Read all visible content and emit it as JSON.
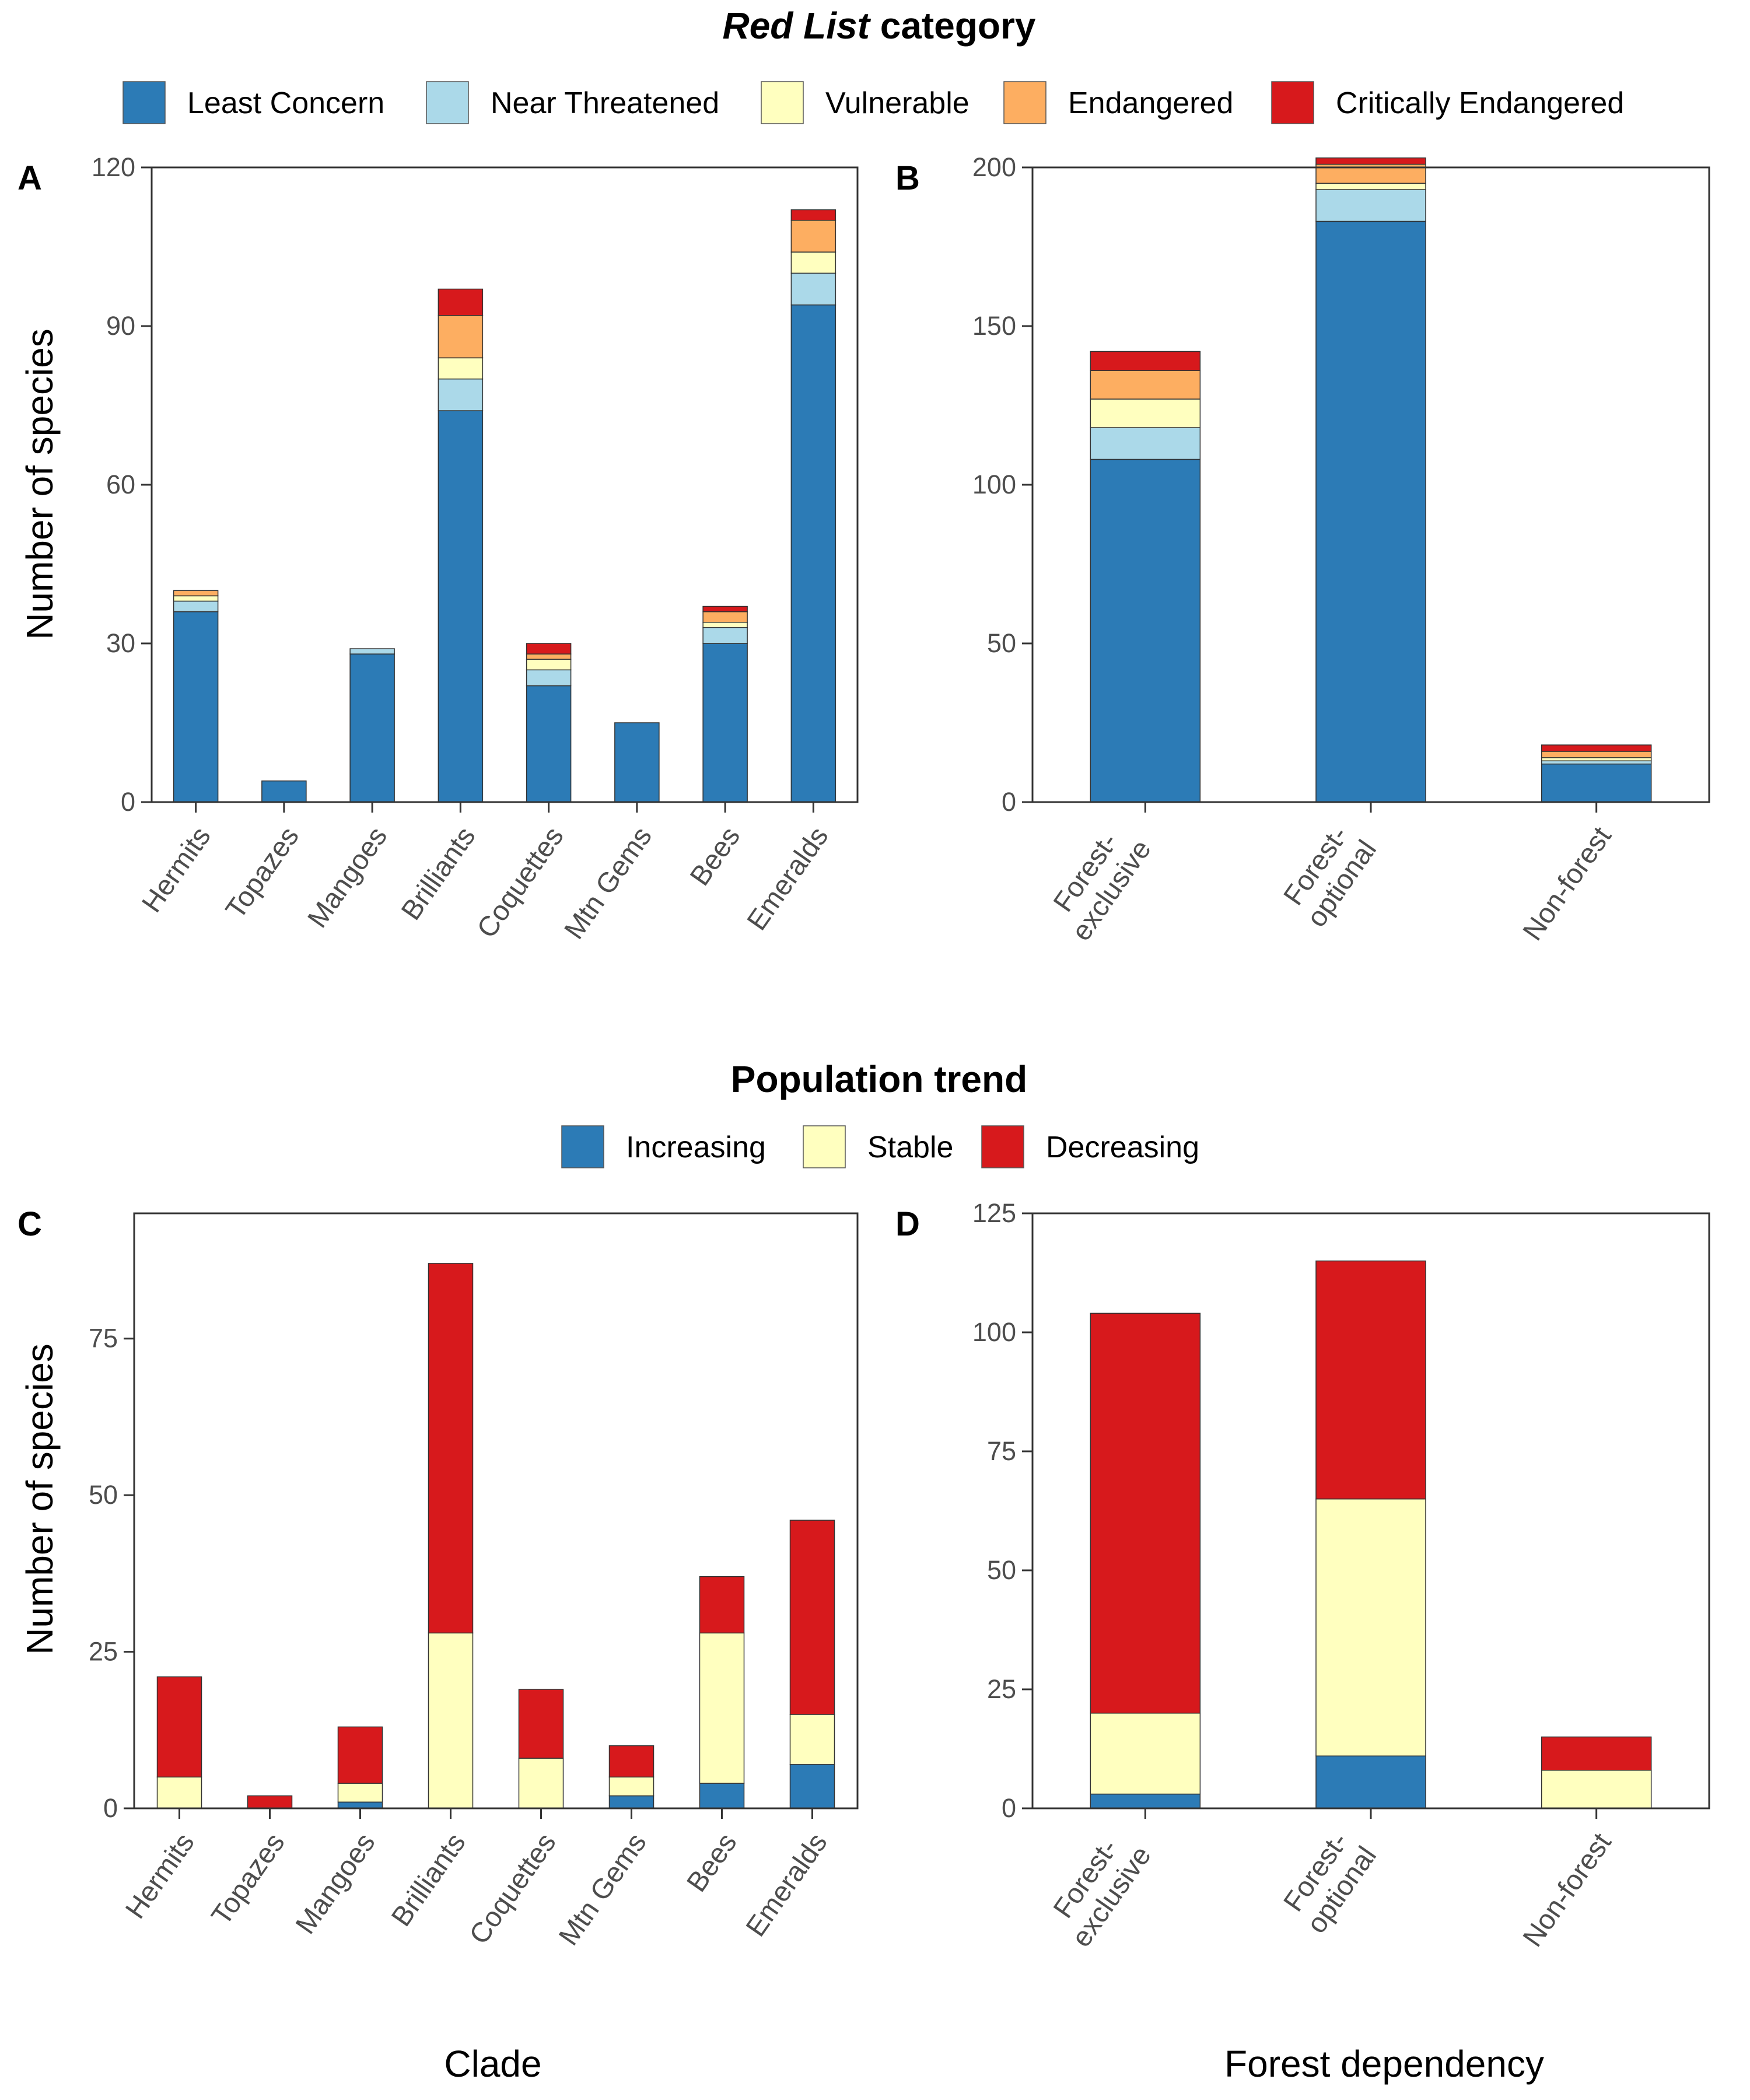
{
  "colors": {
    "least_concern": "#2c7bb6",
    "near_threatened": "#abd9e9",
    "vulnerable": "#ffffbf",
    "endangered": "#fdae61",
    "critically_endangered": "#d7191c",
    "increasing": "#2c7bb6",
    "stable": "#ffffbf",
    "decreasing": "#d7191c"
  },
  "legend_redlist": {
    "title_prefix": "Red List",
    "title_suffix": " category",
    "items": [
      {
        "label": "Least Concern",
        "color": "#2c7bb6"
      },
      {
        "label": "Near Threatened",
        "color": "#abd9e9"
      },
      {
        "label": "Vulnerable",
        "color": "#ffffbf"
      },
      {
        "label": "Endangered",
        "color": "#fdae61"
      },
      {
        "label": "Critically Endangered",
        "color": "#d7191c"
      }
    ]
  },
  "legend_trend": {
    "title": "Population trend",
    "items": [
      {
        "label": "Increasing",
        "color": "#2c7bb6"
      },
      {
        "label": "Stable",
        "color": "#ffffbf"
      },
      {
        "label": "Decreasing",
        "color": "#d7191c"
      }
    ]
  },
  "axis_labels": {
    "y_top": "Number of species",
    "y_bottom": "Number of species",
    "x_clade": "Clade",
    "x_forest": "Forest dependency"
  },
  "chart_data": [
    {
      "panel": "A",
      "type": "bar",
      "stacked": true,
      "categories": [
        "Hermits",
        "Topazes",
        "Mangoes",
        "Brilliants",
        "Coquettes",
        "Mtn Gems",
        "Bees",
        "Emeralds"
      ],
      "ylim": [
        0,
        120
      ],
      "yticks": [
        0,
        30,
        60,
        90,
        120
      ],
      "ylabel": "Number of species",
      "xlabel": "",
      "series": [
        {
          "name": "Least Concern",
          "values": [
            36,
            4,
            28,
            74,
            22,
            15,
            30,
            94
          ]
        },
        {
          "name": "Near Threatened",
          "values": [
            2,
            0,
            1,
            6,
            3,
            0,
            3,
            6
          ]
        },
        {
          "name": "Vulnerable",
          "values": [
            1,
            0,
            0,
            4,
            2,
            0,
            1,
            4
          ]
        },
        {
          "name": "Endangered",
          "values": [
            1,
            0,
            0,
            8,
            1,
            0,
            2,
            6
          ]
        },
        {
          "name": "Critically Endangered",
          "values": [
            0,
            0,
            0,
            5,
            2,
            0,
            1,
            2
          ]
        }
      ]
    },
    {
      "panel": "B",
      "type": "bar",
      "stacked": true,
      "categories": [
        [
          "Forest-",
          "exclusive"
        ],
        [
          "Forest-",
          "optional"
        ],
        [
          "Non-forest"
        ]
      ],
      "ylim": [
        0,
        200
      ],
      "yticks": [
        0,
        50,
        100,
        150,
        200
      ],
      "ylabel": "",
      "xlabel": "",
      "series": [
        {
          "name": "Least Concern",
          "values": [
            108,
            183,
            12
          ]
        },
        {
          "name": "Near Threatened",
          "values": [
            10,
            10,
            1
          ]
        },
        {
          "name": "Vulnerable",
          "values": [
            9,
            2,
            1
          ]
        },
        {
          "name": "Endangered",
          "values": [
            9,
            6,
            2
          ]
        },
        {
          "name": "Critically Endangered",
          "values": [
            6,
            2,
            2
          ]
        }
      ]
    },
    {
      "panel": "C",
      "type": "bar",
      "stacked": true,
      "categories": [
        "Hermits",
        "Topazes",
        "Mangoes",
        "Brilliants",
        "Coquettes",
        "Mtn Gems",
        "Bees",
        "Emeralds"
      ],
      "ylim": [
        0,
        95
      ],
      "yticks": [
        0,
        25,
        50,
        75
      ],
      "ylabel": "Number of species",
      "xlabel": "Clade",
      "series": [
        {
          "name": "Increasing",
          "values": [
            0,
            0,
            1,
            0,
            0,
            2,
            4,
            7
          ]
        },
        {
          "name": "Stable",
          "values": [
            5,
            0,
            3,
            28,
            8,
            3,
            24,
            8
          ]
        },
        {
          "name": "Decreasing",
          "values": [
            16,
            2,
            9,
            59,
            11,
            5,
            9,
            31
          ]
        }
      ]
    },
    {
      "panel": "D",
      "type": "bar",
      "stacked": true,
      "categories": [
        [
          "Forest-",
          "exclusive"
        ],
        [
          "Forest-",
          "optional"
        ],
        [
          "Non-forest"
        ]
      ],
      "ylim": [
        0,
        125
      ],
      "yticks": [
        0,
        25,
        50,
        75,
        100,
        125
      ],
      "ylabel": "",
      "xlabel": "Forest dependency",
      "series": [
        {
          "name": "Increasing",
          "values": [
            3,
            11,
            0
          ]
        },
        {
          "name": "Stable",
          "values": [
            17,
            54,
            8
          ]
        },
        {
          "name": "Decreasing",
          "values": [
            84,
            50,
            7
          ]
        }
      ]
    }
  ]
}
